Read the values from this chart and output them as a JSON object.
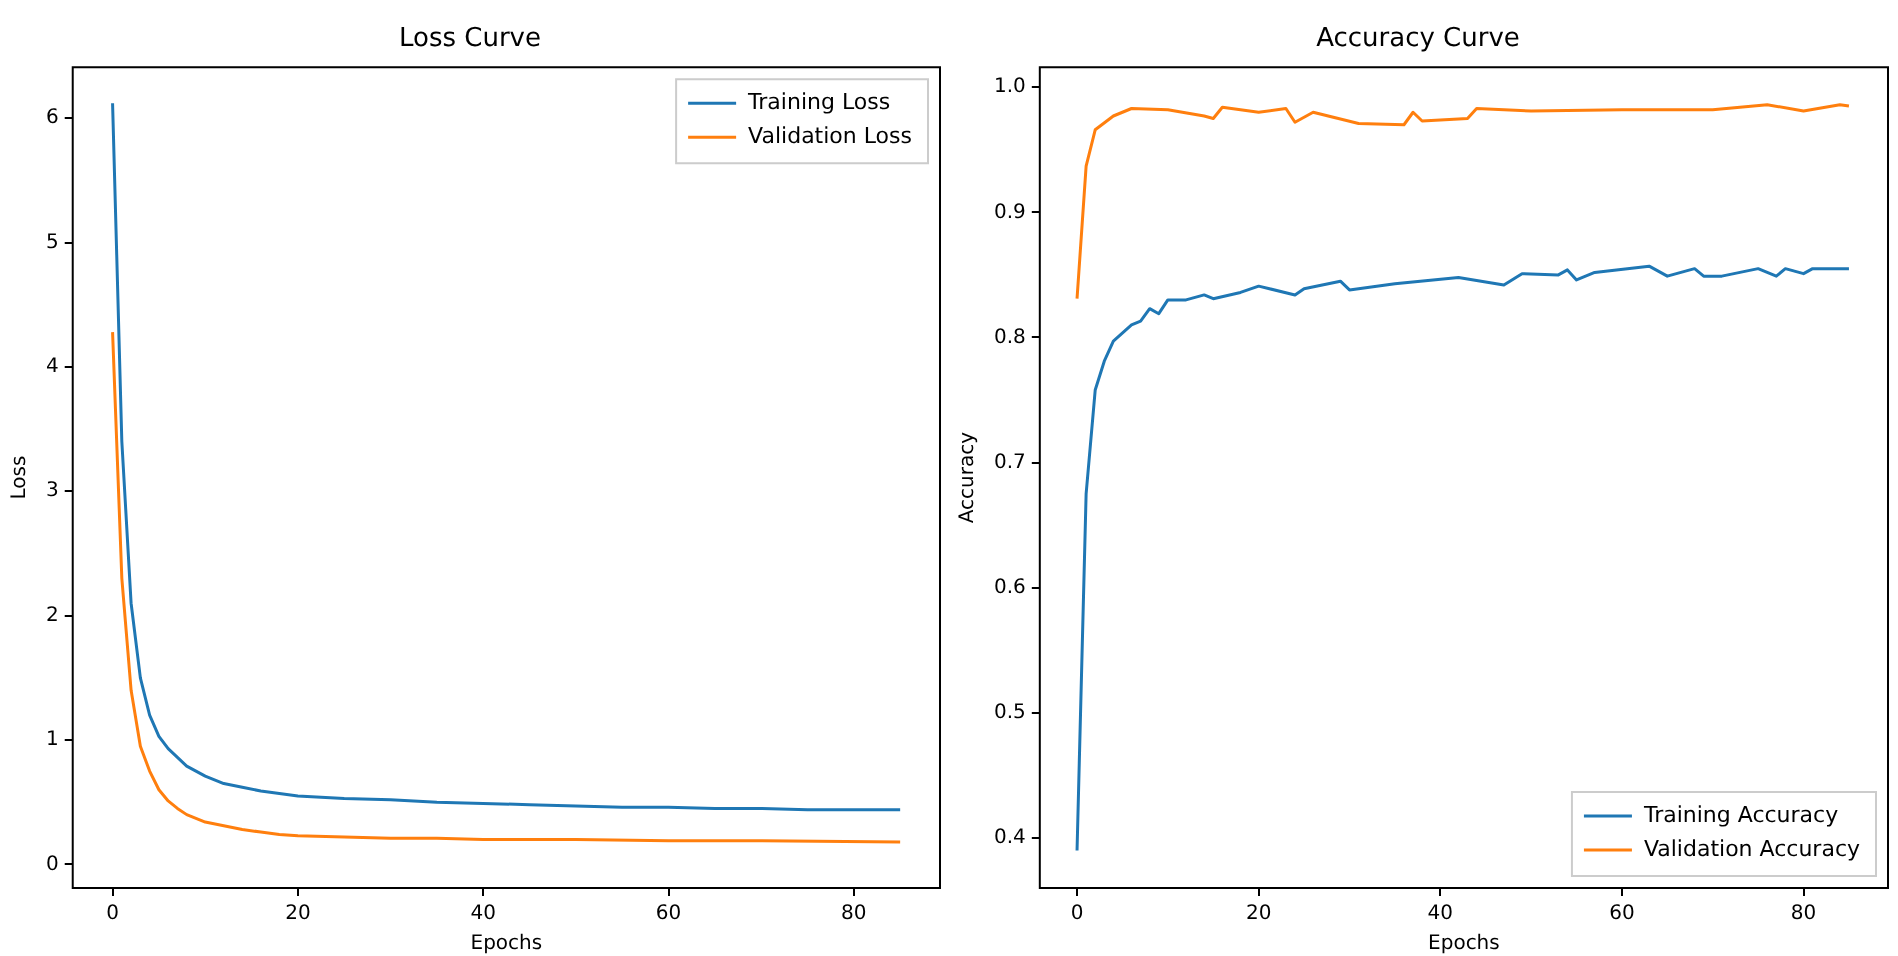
{
  "chart_data": [
    {
      "type": "line",
      "title": "Loss Curve",
      "xlabel": "Epochs",
      "ylabel": "Loss",
      "xlim": [
        -4.3,
        89.3
      ],
      "xticks": [
        0,
        20,
        40,
        60,
        80
      ],
      "ylim": [
        -0.19,
        6.41
      ],
      "yticks": [
        0,
        1,
        2,
        3,
        4,
        5,
        6
      ],
      "legend": "top right",
      "grid": false,
      "marker": "none",
      "line_style": "solid",
      "series": [
        {
          "name": "Training Loss",
          "color": "#1f77b4",
          "x": [
            0,
            1,
            2,
            3,
            4,
            5,
            6,
            7,
            8,
            9,
            10,
            12,
            14,
            16,
            18,
            20,
            25,
            30,
            35,
            40,
            45,
            50,
            55,
            60,
            65,
            70,
            75,
            80,
            85
          ],
          "values": [
            6.12,
            3.4,
            2.1,
            1.5,
            1.2,
            1.03,
            0.93,
            0.86,
            0.79,
            0.75,
            0.71,
            0.65,
            0.62,
            0.59,
            0.57,
            0.55,
            0.53,
            0.52,
            0.5,
            0.49,
            0.48,
            0.47,
            0.46,
            0.46,
            0.45,
            0.45,
            0.44,
            0.44,
            0.44
          ]
        },
        {
          "name": "Validation Loss",
          "color": "#ff7f0e",
          "x": [
            0,
            1,
            2,
            3,
            4,
            5,
            6,
            7,
            8,
            9,
            10,
            12,
            14,
            16,
            18,
            20,
            25,
            30,
            35,
            40,
            50,
            60,
            70,
            85
          ],
          "values": [
            4.28,
            2.3,
            1.4,
            0.95,
            0.75,
            0.6,
            0.51,
            0.45,
            0.4,
            0.37,
            0.34,
            0.31,
            0.28,
            0.26,
            0.24,
            0.23,
            0.22,
            0.21,
            0.21,
            0.2,
            0.2,
            0.19,
            0.19,
            0.18
          ]
        }
      ]
    },
    {
      "type": "line",
      "title": "Accuracy Curve",
      "xlabel": "Epochs",
      "ylabel": "Accuracy",
      "xlim": [
        -4.1,
        89.3
      ],
      "xticks": [
        0,
        20,
        40,
        60,
        80
      ],
      "ylim": [
        0.36,
        1.016
      ],
      "yticks": [
        0.4,
        0.5,
        0.6,
        0.7,
        0.8,
        0.9,
        {
          "value": 1,
          "label": "1.0"
        }
      ],
      "legend": "bottom right",
      "grid": false,
      "marker": "none",
      "line_style": "solid",
      "series": [
        {
          "name": "Training Accuracy",
          "color": "#1f77b4",
          "x": [
            0,
            1,
            2,
            3,
            4,
            6,
            7,
            8,
            9,
            10,
            12,
            14,
            15,
            18,
            20,
            24,
            25,
            29,
            30,
            35,
            42,
            47,
            49,
            53,
            54,
            55,
            57,
            63,
            65,
            68,
            69,
            71,
            75,
            77,
            78,
            80,
            81,
            85
          ],
          "values": [
            0.39,
            0.675,
            0.758,
            0.781,
            0.797,
            0.81,
            0.813,
            0.823,
            0.819,
            0.83,
            0.83,
            0.834,
            0.831,
            0.836,
            0.841,
            0.834,
            0.839,
            0.845,
            0.838,
            0.843,
            0.848,
            0.842,
            0.851,
            0.85,
            0.854,
            0.846,
            0.852,
            0.857,
            0.849,
            0.855,
            0.849,
            0.849,
            0.855,
            0.849,
            0.855,
            0.851,
            0.855,
            0.855
          ]
        },
        {
          "name": "Validation Accuracy",
          "color": "#ff7f0e",
          "x": [
            0,
            1,
            2,
            4,
            6,
            10,
            14,
            15,
            16,
            20,
            23,
            24,
            26,
            31,
            36,
            37,
            38,
            43,
            44,
            50,
            60,
            70,
            76,
            80,
            84,
            85
          ],
          "values": [
            0.831,
            0.937,
            0.966,
            0.977,
            0.983,
            0.982,
            0.977,
            0.975,
            0.984,
            0.98,
            0.983,
            0.972,
            0.98,
            0.971,
            0.97,
            0.98,
            0.973,
            0.975,
            0.983,
            0.981,
            0.982,
            0.982,
            0.986,
            0.981,
            0.986,
            0.985
          ]
        }
      ]
    }
  ]
}
